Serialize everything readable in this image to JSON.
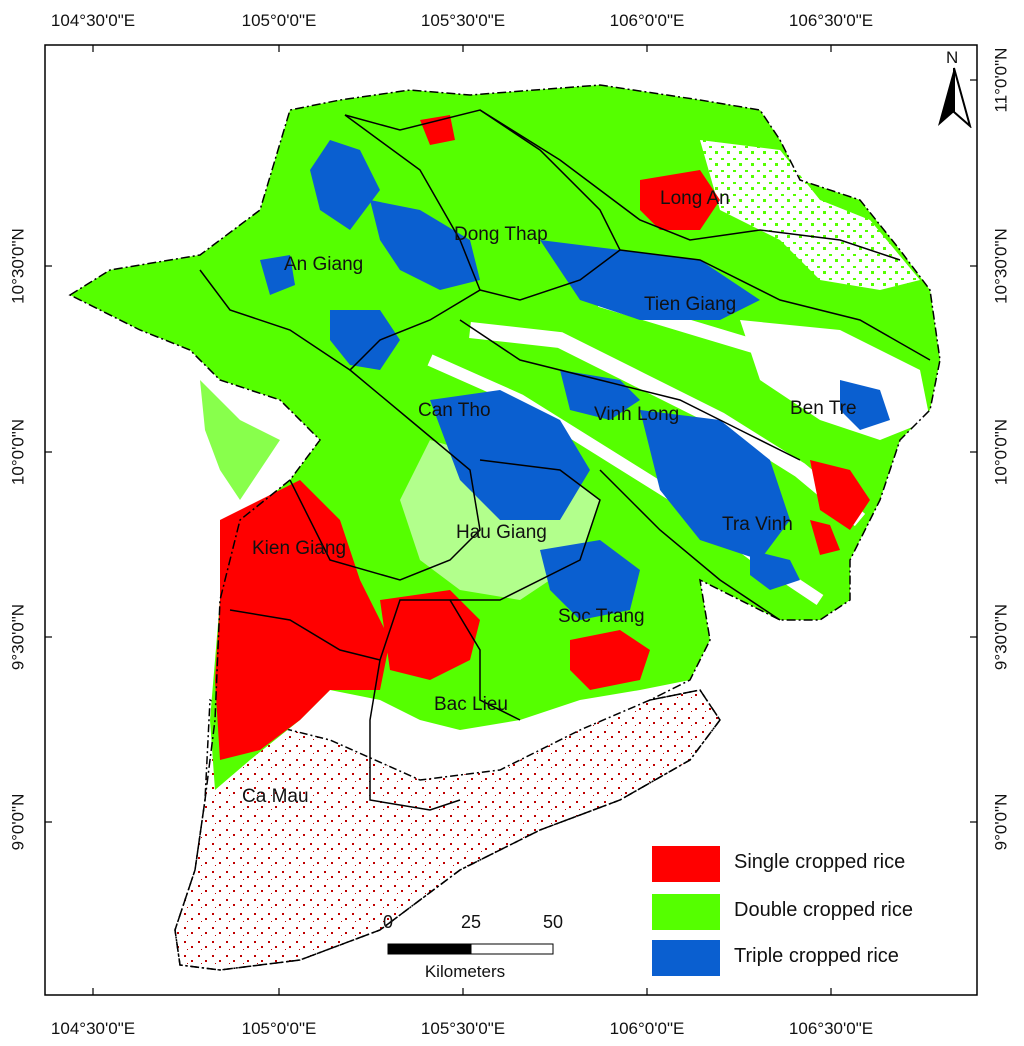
{
  "axes": {
    "top_ticks": [
      "104°30'0\"E",
      "105°0'0\"E",
      "105°30'0\"E",
      "106°0'0\"E",
      "106°30'0\"E"
    ],
    "bottom_ticks": [
      "104°30'0\"E",
      "105°0'0\"E",
      "105°30'0\"E",
      "106°0'0\"E",
      "106°30'0\"E"
    ],
    "left_ticks": [
      "10°30'0\"N",
      "10°0'0\"N",
      "9°30'0\"N",
      "9°0'0\"N"
    ],
    "right_ticks": [
      "11°0'0\"N",
      "10°30'0\"N",
      "10°0'0\"N",
      "9°30'0\"N",
      "9°0'0\"N"
    ]
  },
  "north_arrow": {
    "label": "N",
    "icon": "north-arrow-icon"
  },
  "provinces": [
    {
      "name": "Long An"
    },
    {
      "name": "Dong Thap"
    },
    {
      "name": "An Giang"
    },
    {
      "name": "Tien Giang"
    },
    {
      "name": "Ben Tre"
    },
    {
      "name": "Can Tho"
    },
    {
      "name": "Vinh Long"
    },
    {
      "name": "Hau Giang"
    },
    {
      "name": "Tra Vinh"
    },
    {
      "name": "Kien Giang"
    },
    {
      "name": "Soc Trang"
    },
    {
      "name": "Bac Lieu"
    },
    {
      "name": "Ca Mau"
    }
  ],
  "legend": [
    {
      "label": "Single cropped rice",
      "color": "#ff0000"
    },
    {
      "label": "Double cropped rice",
      "color": "#55ff00"
    },
    {
      "label": "Triple cropped rice",
      "color": "#0a5fd0"
    }
  ],
  "scale_bar": {
    "ticks": [
      "0",
      "25",
      "50"
    ],
    "unit": "Kilometers"
  }
}
